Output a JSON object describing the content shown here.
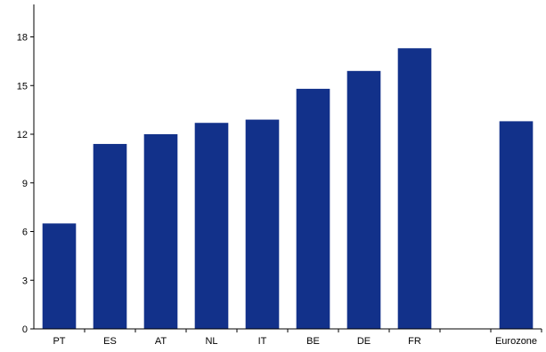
{
  "chart_data": {
    "type": "bar",
    "categories": [
      "PT",
      "ES",
      "AT",
      "NL",
      "IT",
      "BE",
      "DE",
      "FR",
      "",
      "Eurozone"
    ],
    "values": [
      6.5,
      11.4,
      12.0,
      12.7,
      12.9,
      14.8,
      15.9,
      17.3,
      null,
      12.8
    ],
    "title": "",
    "xlabel": "",
    "ylabel": "",
    "ylim": [
      0,
      20
    ],
    "yticks": [
      0,
      3,
      6,
      9,
      12,
      15,
      18
    ],
    "ytick_labels": [
      "0",
      "3",
      "6",
      "9",
      "12",
      "15",
      "18"
    ],
    "bar_color": "#12318a",
    "grid": false,
    "legend": "none"
  }
}
